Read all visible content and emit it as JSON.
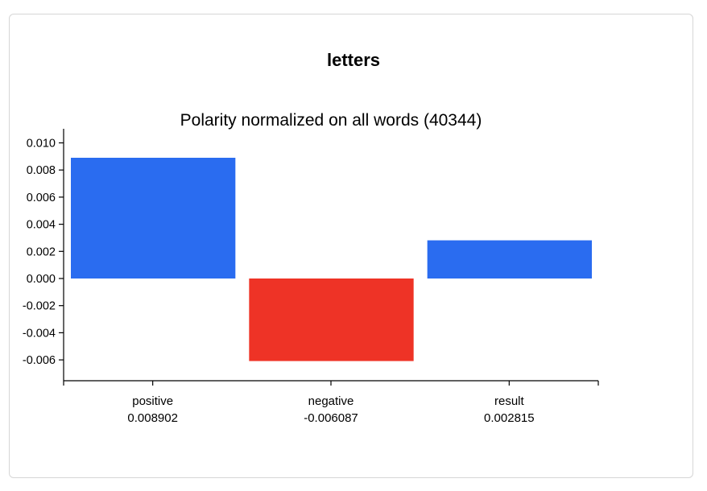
{
  "card": {
    "title": "letters"
  },
  "colors": {
    "positive_bar": "#2a6cf0",
    "negative_bar": "#ee3326",
    "axis": "#000000"
  },
  "chart_data": {
    "type": "bar",
    "title": "Polarity normalized on all words (40344)",
    "categories": [
      "positive",
      "negative",
      "result"
    ],
    "category_values_text": [
      "0.008902",
      "-0.006087",
      "0.002815"
    ],
    "values": [
      0.008902,
      -0.006087,
      0.002815
    ],
    "yticks": [
      "0.010",
      "0.008",
      "0.006",
      "0.004",
      "0.002",
      "0.000",
      "-0.002",
      "-0.004",
      "-0.006"
    ],
    "ytick_values": [
      0.01,
      0.008,
      0.006,
      0.004,
      0.002,
      0.0,
      -0.002,
      -0.004,
      -0.006
    ],
    "ylim": [
      -0.0075,
      0.0102
    ],
    "xlabel": "",
    "ylabel": "",
    "grid": false,
    "legend": "none"
  }
}
